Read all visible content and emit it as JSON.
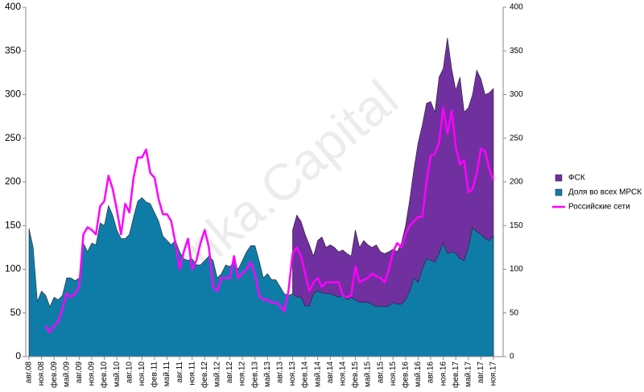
{
  "chart_data": {
    "type": "area",
    "watermark": "Alёnka.Capital",
    "categories": [
      "авг.08",
      null,
      null,
      "ноя.08",
      null,
      null,
      "фев.09",
      null,
      null,
      "май.09",
      null,
      null,
      "авг.09",
      null,
      null,
      "ноя.09",
      null,
      null,
      "фев.10",
      null,
      null,
      "май.10",
      null,
      null,
      "авг.10",
      null,
      null,
      "ноя.10",
      null,
      null,
      "фев.11",
      null,
      null,
      "май.11",
      null,
      null,
      "авг.11",
      null,
      null,
      "ноя.11",
      null,
      null,
      "фев.12",
      null,
      null,
      "май.12",
      null,
      null,
      "авг.12",
      null,
      null,
      "ноя.12",
      null,
      null,
      "фев.13",
      null,
      null,
      "май.13",
      null,
      null,
      "авг.13",
      null,
      null,
      "ноя.13",
      null,
      null,
      "фев.14",
      null,
      null,
      "май.14",
      null,
      null,
      "авг.14",
      null,
      null,
      "ноя.14",
      null,
      null,
      "фев.15",
      null,
      null,
      "май.15",
      null,
      null,
      "авг.15",
      null,
      null,
      "ноя.15",
      null,
      null,
      "фев.16",
      null,
      null,
      "май.16",
      null,
      null,
      "авг.16",
      null,
      null,
      "ноя.16",
      null,
      null,
      "фев.17",
      null,
      null,
      "май.17",
      null,
      null,
      "авг.17",
      null,
      null,
      "ноя.17"
    ],
    "series": [
      {
        "name": "ФСК",
        "color": "#7030a0",
        "kind": "area",
        "values": [
          null,
          null,
          null,
          null,
          null,
          null,
          null,
          null,
          null,
          null,
          null,
          null,
          null,
          null,
          null,
          null,
          null,
          null,
          null,
          null,
          null,
          null,
          null,
          null,
          null,
          null,
          null,
          null,
          null,
          null,
          null,
          null,
          null,
          null,
          null,
          null,
          null,
          null,
          null,
          null,
          null,
          null,
          null,
          null,
          null,
          null,
          null,
          null,
          null,
          null,
          null,
          null,
          null,
          null,
          null,
          null,
          null,
          null,
          null,
          null,
          null,
          null,
          null,
          145,
          162,
          155,
          140,
          128,
          115,
          133,
          137,
          125,
          128,
          125,
          120,
          122,
          118,
          115,
          145,
          125,
          133,
          128,
          125,
          128,
          120,
          118,
          120,
          123,
          120,
          130,
          150,
          180,
          215,
          245,
          265,
          290,
          292,
          280,
          320,
          330,
          365,
          330,
          305,
          320,
          280,
          285,
          300,
          328,
          318,
          300,
          302,
          307
        ]
      },
      {
        "name": "Доля во всех МРСК",
        "color": "#0f7ca8",
        "kind": "area",
        "values": [
          147,
          125,
          63,
          75,
          70,
          57,
          68,
          65,
          70,
          90,
          90,
          87,
          90,
          130,
          120,
          130,
          128,
          153,
          150,
          173,
          162,
          145,
          135,
          135,
          140,
          160,
          178,
          182,
          177,
          175,
          165,
          155,
          138,
          133,
          128,
          133,
          120,
          112,
          110,
          112,
          105,
          105,
          110,
          115,
          110,
          90,
          95,
          105,
          103,
          108,
          100,
          110,
          120,
          127,
          127,
          110,
          90,
          95,
          88,
          88,
          80,
          72,
          70,
          72,
          68,
          68,
          58,
          58,
          72,
          75,
          73,
          72,
          72,
          70,
          68,
          70,
          65,
          68,
          65,
          62,
          62,
          62,
          60,
          57,
          58,
          57,
          58,
          62,
          60,
          60,
          65,
          75,
          90,
          85,
          100,
          112,
          110,
          108,
          118,
          130,
          118,
          120,
          118,
          112,
          110,
          125,
          148,
          143,
          140,
          135,
          133,
          138
        ]
      },
      {
        "name": "Российские сети",
        "color": "#ff00ff",
        "kind": "line",
        "values": [
          null,
          null,
          null,
          null,
          35,
          28,
          35,
          40,
          55,
          72,
          68,
          72,
          80,
          140,
          148,
          145,
          140,
          172,
          178,
          207,
          192,
          168,
          140,
          175,
          165,
          205,
          228,
          228,
          237,
          210,
          205,
          180,
          163,
          163,
          155,
          130,
          100,
          120,
          135,
          100,
          110,
          130,
          145,
          125,
          80,
          75,
          90,
          90,
          90,
          115,
          90,
          95,
          100,
          108,
          95,
          70,
          65,
          65,
          62,
          62,
          58,
          52,
          75,
          118,
          125,
          115,
          95,
          75,
          85,
          90,
          80,
          85,
          85,
          85,
          85,
          70,
          68,
          70,
          103,
          85,
          88,
          90,
          95,
          92,
          90,
          85,
          100,
          120,
          130,
          125,
          140,
          150,
          155,
          160,
          160,
          200,
          230,
          232,
          245,
          285,
          255,
          282,
          240,
          220,
          225,
          188,
          192,
          210,
          238,
          235,
          215,
          202
        ]
      }
    ],
    "ylim": [
      0,
      400
    ],
    "yticks": [
      0,
      50,
      100,
      150,
      200,
      250,
      300,
      350,
      400
    ],
    "y2lim": [
      0,
      400
    ],
    "y2ticks": [
      0,
      50,
      100,
      150,
      200,
      250,
      300,
      350,
      400
    ],
    "legend": "right"
  }
}
